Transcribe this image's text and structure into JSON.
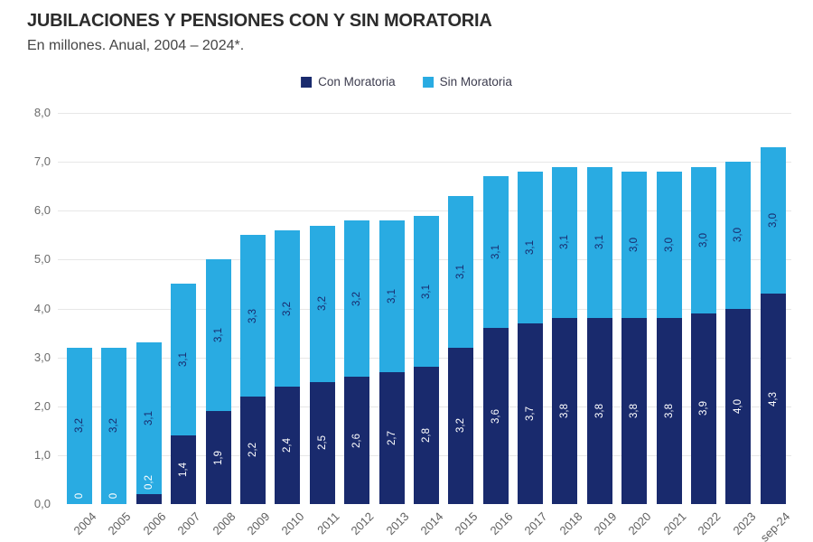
{
  "header": {
    "title": "JUBILACIONES Y PENSIONES CON Y SIN MORATORIA",
    "subtitle": "En millones. Anual, 2004 – 2024*."
  },
  "legend": {
    "items": [
      {
        "label": "Con Moratoria",
        "color": "#192a6d"
      },
      {
        "label": "Sin Moratoria",
        "color": "#29abe2"
      }
    ]
  },
  "chart_data": {
    "type": "bar",
    "stacked": true,
    "title": "JUBILACIONES Y PENSIONES CON Y SIN MORATORIA",
    "subtitle": "En millones. Anual, 2004 – 2024*.",
    "categories": [
      "2004",
      "2005",
      "2006",
      "2007",
      "2008",
      "2009",
      "2010",
      "2011",
      "2012",
      "2013",
      "2014",
      "2015",
      "2016",
      "2017",
      "2018",
      "2019",
      "2020",
      "2021",
      "2022",
      "2023",
      "sep-24"
    ],
    "series": [
      {
        "name": "Con Moratoria",
        "color": "#192a6d",
        "label_color": "#ffffff",
        "values": [
          0,
          0,
          0.2,
          1.4,
          1.9,
          2.2,
          2.4,
          2.5,
          2.6,
          2.7,
          2.8,
          3.2,
          3.6,
          3.7,
          3.8,
          3.8,
          3.8,
          3.8,
          3.9,
          4.0,
          4.3
        ],
        "labels": [
          "0",
          "0",
          "0,2",
          "1,4",
          "1,9",
          "2,2",
          "2,4",
          "2,5",
          "2,6",
          "2,7",
          "2,8",
          "3,2",
          "3,6",
          "3,7",
          "3,8",
          "3,8",
          "3,8",
          "3,8",
          "3,9",
          "4,0",
          "4,3"
        ]
      },
      {
        "name": "Sin Moratoria",
        "color": "#29abe2",
        "label_color": "#192a6d",
        "values": [
          3.2,
          3.2,
          3.1,
          3.1,
          3.1,
          3.3,
          3.2,
          3.2,
          3.2,
          3.1,
          3.1,
          3.1,
          3.1,
          3.1,
          3.1,
          3.1,
          3.0,
          3.0,
          3.0,
          3.0,
          3.0
        ],
        "labels": [
          "3,2",
          "3,2",
          "3,1",
          "3,1",
          "3,1",
          "3,3",
          "3,2",
          "3,2",
          "3,2",
          "3,1",
          "3,1",
          "3,1",
          "3,1",
          "3,1",
          "3,1",
          "3,1",
          "3,0",
          "3,0",
          "3,0",
          "3,0",
          "3,0"
        ]
      }
    ],
    "ylim": [
      0,
      8
    ],
    "ytick_values": [
      0,
      1,
      2,
      3,
      4,
      5,
      6,
      7,
      8
    ],
    "ytick_labels": [
      "0,0",
      "1,0",
      "2,0",
      "3,0",
      "4,0",
      "5,0",
      "6,0",
      "7,0",
      "8,0"
    ],
    "grid": "horizontal",
    "legend_position": "top-center"
  },
  "colors": {
    "background": "#ffffff",
    "grid": "#e7e7e7",
    "tick_text": "#6b6b6b",
    "xaxis_text": "#5f5f5f",
    "title_text": "#2c2c2c",
    "subtitle_text": "#454545",
    "legend_text": "#3c3c4e"
  }
}
